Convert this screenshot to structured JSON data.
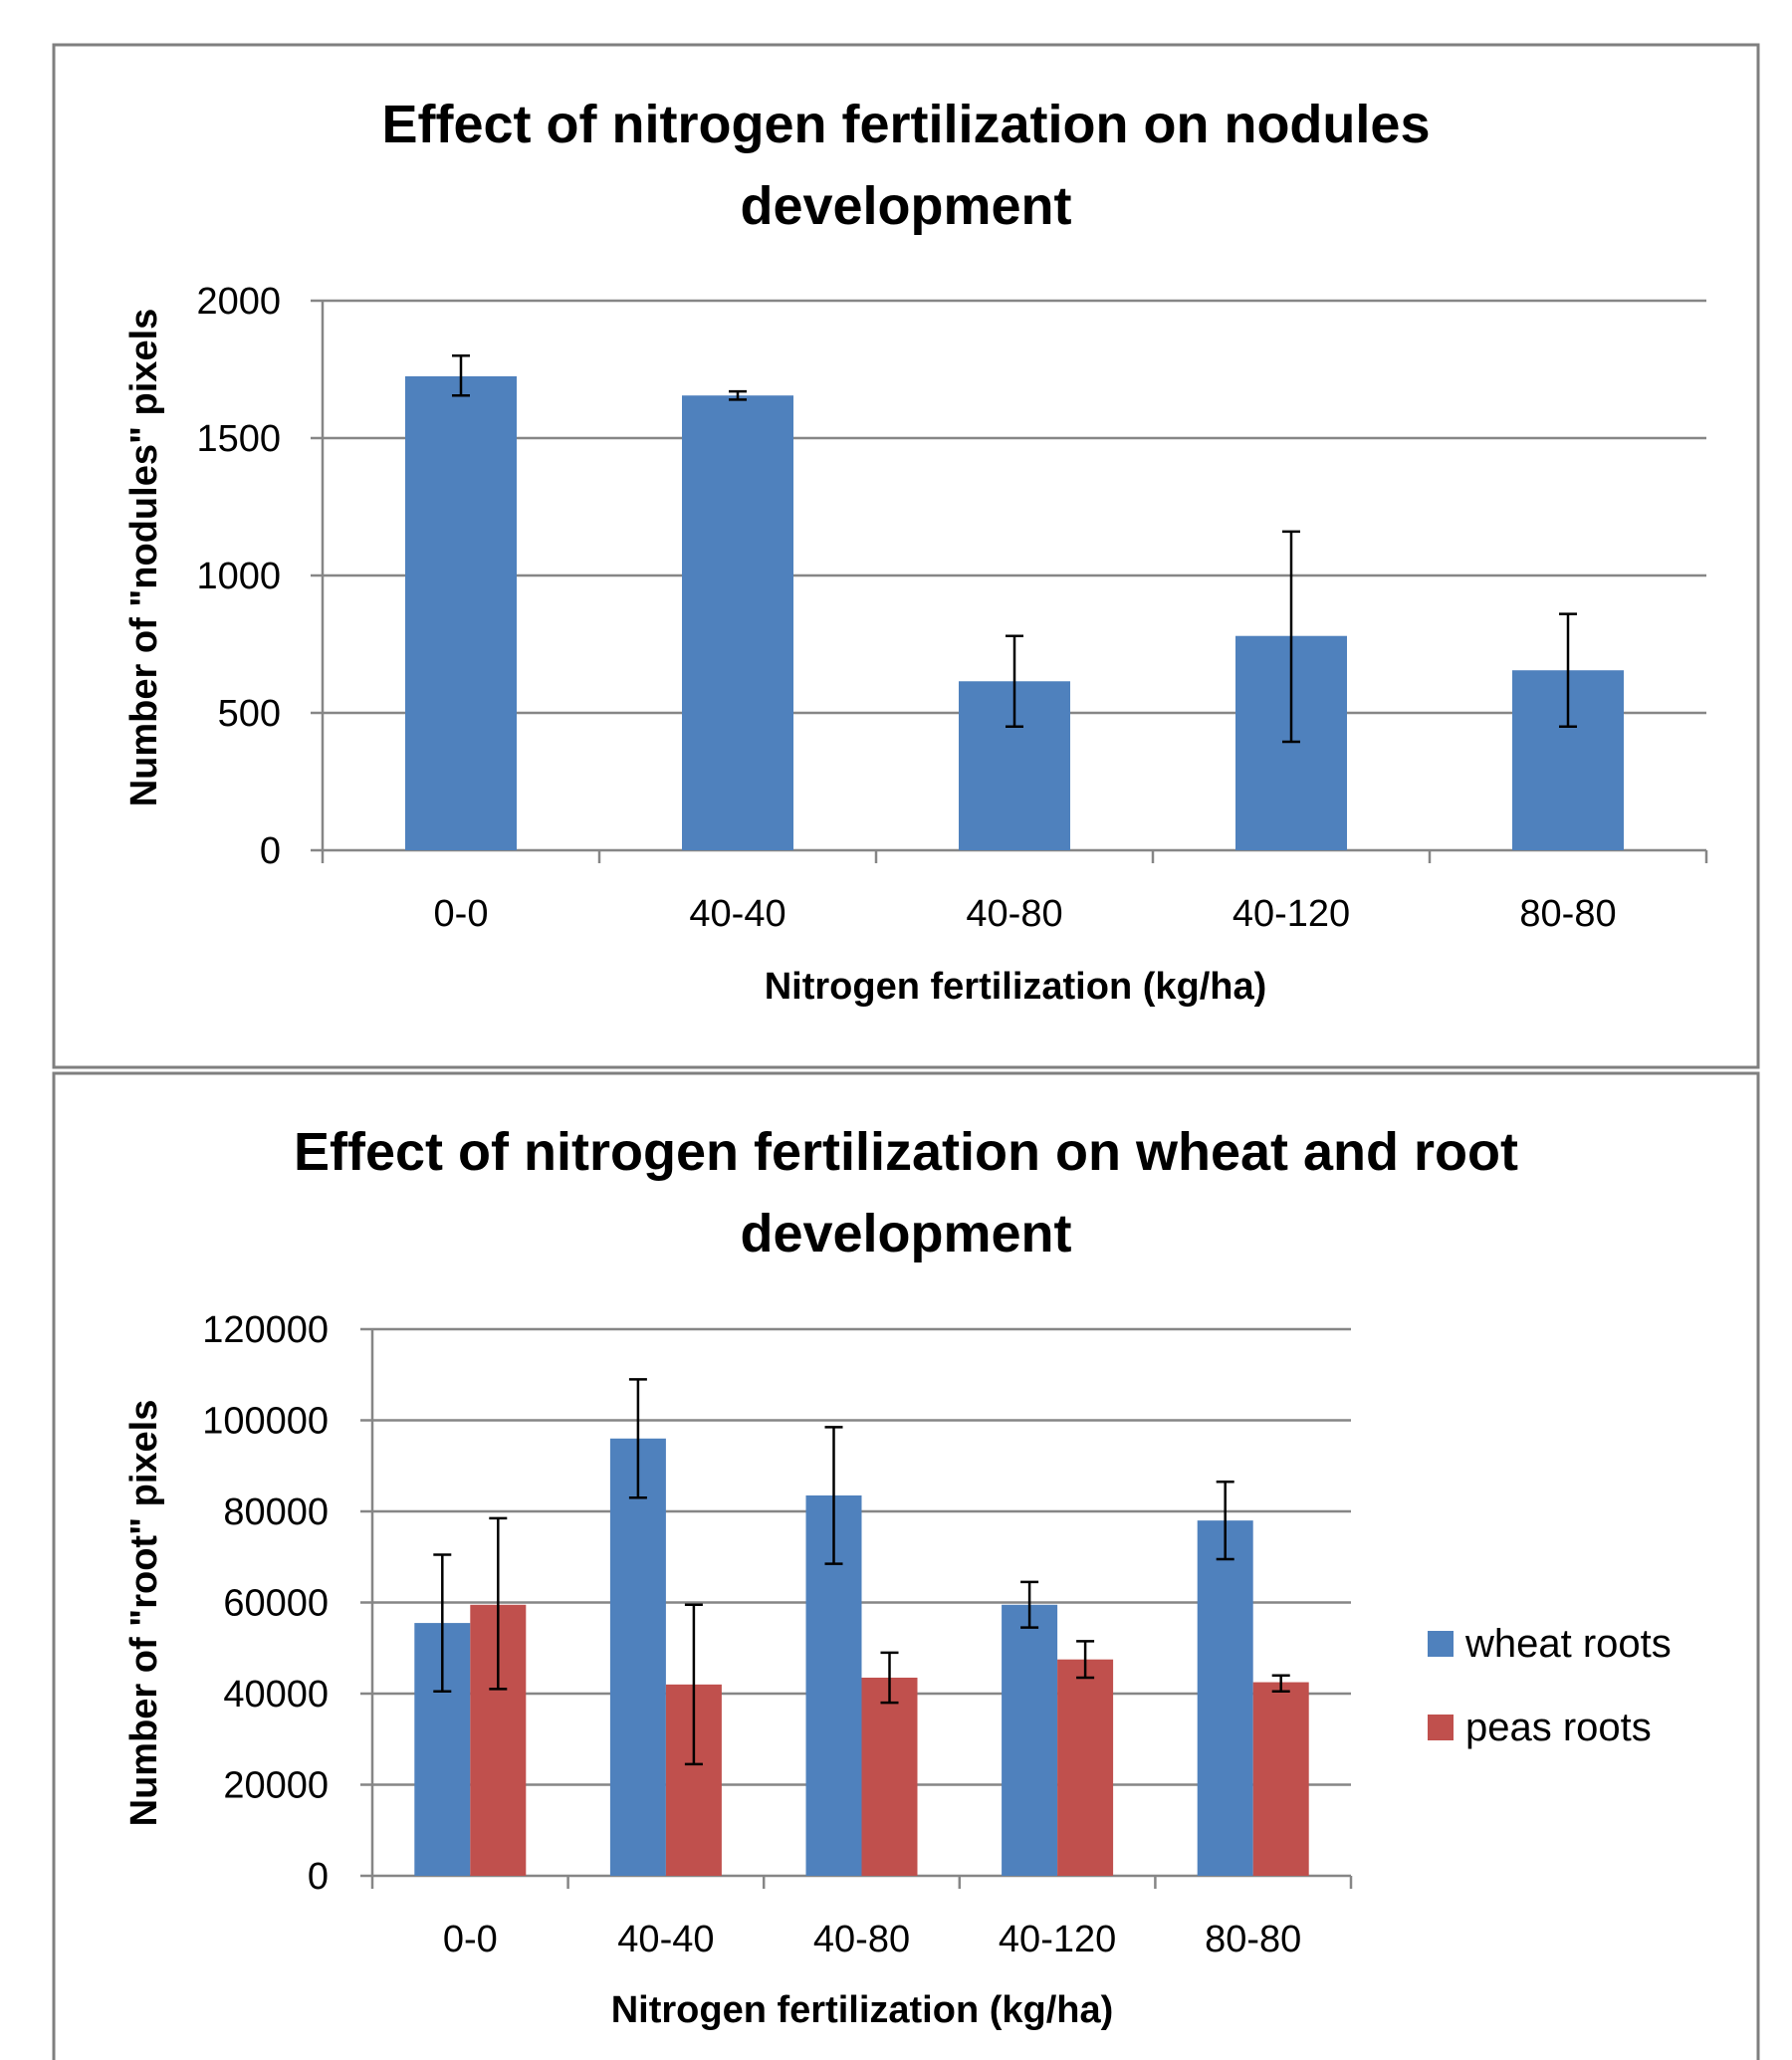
{
  "chart_data": [
    {
      "type": "bar",
      "title_line1": "Effect of nitrogen fertilization on nodules",
      "title_line2": "development",
      "xlabel": "Nitrogen fertilization (kg/ha)",
      "ylabel": "Number of \"nodules\" pixels",
      "categories": [
        "0-0",
        "40-40",
        "40-80",
        "40-120",
        "80-80"
      ],
      "ylim": [
        0,
        2000
      ],
      "yticks": [
        "0",
        "500",
        "1000",
        "1500",
        "2000"
      ],
      "grid": true,
      "legend": "none",
      "series": [
        {
          "values": [
            1725,
            1655,
            615,
            780,
            655
          ],
          "error_low": [
            1655,
            1640,
            450,
            395,
            450
          ],
          "error_high": [
            1800,
            1670,
            780,
            1160,
            860
          ],
          "color": "#4f81bd"
        }
      ]
    },
    {
      "type": "bar",
      "title_line1": "Effect of nitrogen fertilization on wheat and root",
      "title_line2": "development",
      "xlabel": "Nitrogen fertilization (kg/ha)",
      "ylabel": "Number of \"root\" pixels",
      "categories": [
        "0-0",
        "40-40",
        "40-80",
        "40-120",
        "80-80"
      ],
      "ylim": [
        0,
        120000
      ],
      "yticks": [
        "0",
        "20000",
        "40000",
        "60000",
        "80000",
        "100000",
        "120000"
      ],
      "grid": true,
      "legend": "right",
      "series": [
        {
          "name": "wheat roots",
          "values": [
            55500,
            96000,
            83500,
            59500,
            78000
          ],
          "error_low": [
            40500,
            83000,
            68500,
            54500,
            69500
          ],
          "error_high": [
            70500,
            109000,
            98500,
            64500,
            86500
          ],
          "color": "#4f81bd"
        },
        {
          "name": "peas roots",
          "values": [
            59500,
            42000,
            43500,
            47500,
            42500
          ],
          "error_low": [
            41000,
            24500,
            38000,
            43500,
            40500
          ],
          "error_high": [
            78500,
            59500,
            49000,
            51500,
            44000
          ],
          "color": "#c0504d"
        }
      ]
    }
  ]
}
